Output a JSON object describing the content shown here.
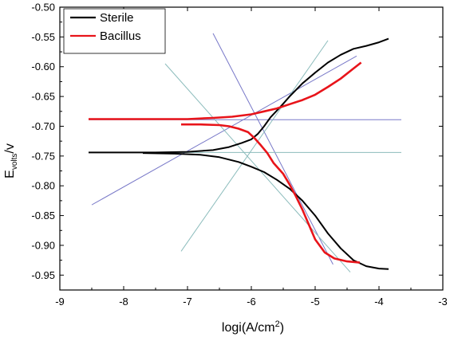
{
  "chart_data": {
    "type": "line",
    "title": "",
    "xlabel": "logi(A/cm",
    "xlabel_sup": "2",
    "xlabel_close": ")",
    "ylabel_main": "E",
    "ylabel_sub": "volts",
    "ylabel_unit": "/v",
    "xlim": [
      -9,
      -3
    ],
    "ylim": [
      -0.975,
      -0.5
    ],
    "x_ticks": [
      -9,
      -8,
      -7,
      -6,
      -5,
      -4,
      -3
    ],
    "x_tick_labels": [
      "-9",
      "-8",
      "-7",
      "-6",
      "-5",
      "-4",
      "-3"
    ],
    "y_ticks": [
      -0.95,
      -0.9,
      -0.85,
      -0.8,
      -0.75,
      -0.7,
      -0.65,
      -0.6,
      -0.55,
      -0.5
    ],
    "y_tick_labels": [
      "-0.95",
      "-0.90",
      "-0.85",
      "-0.80",
      "-0.75",
      "-0.70",
      "-0.65",
      "-0.60",
      "-0.55",
      "-0.50"
    ],
    "grid": false,
    "legend_position": "top-left",
    "series": [
      {
        "name": "Sterile",
        "color": "#000000",
        "anodic": [
          [
            -8.55,
            -0.744
          ],
          [
            -7.5,
            -0.744
          ],
          [
            -7.0,
            -0.743
          ],
          [
            -6.6,
            -0.74
          ],
          [
            -6.35,
            -0.735
          ],
          [
            -6.15,
            -0.728
          ],
          [
            -6.0,
            -0.722
          ],
          [
            -5.9,
            -0.713
          ],
          [
            -5.8,
            -0.7
          ],
          [
            -5.7,
            -0.685
          ],
          [
            -5.55,
            -0.668
          ],
          [
            -5.4,
            -0.65
          ],
          [
            -5.2,
            -0.628
          ],
          [
            -5.0,
            -0.61
          ],
          [
            -4.8,
            -0.593
          ],
          [
            -4.6,
            -0.58
          ],
          [
            -4.4,
            -0.57
          ],
          [
            -4.2,
            -0.565
          ],
          [
            -4.0,
            -0.559
          ],
          [
            -3.85,
            -0.553
          ]
        ],
        "cathodic": [
          [
            -7.7,
            -0.745
          ],
          [
            -7.2,
            -0.746
          ],
          [
            -6.8,
            -0.748
          ],
          [
            -6.5,
            -0.752
          ],
          [
            -6.2,
            -0.76
          ],
          [
            -6.0,
            -0.768
          ],
          [
            -5.8,
            -0.777
          ],
          [
            -5.6,
            -0.79
          ],
          [
            -5.4,
            -0.805
          ],
          [
            -5.2,
            -0.825
          ],
          [
            -5.0,
            -0.85
          ],
          [
            -4.8,
            -0.88
          ],
          [
            -4.6,
            -0.905
          ],
          [
            -4.4,
            -0.925
          ],
          [
            -4.2,
            -0.935
          ],
          [
            -4.0,
            -0.939
          ],
          [
            -3.85,
            -0.94
          ]
        ]
      },
      {
        "name": "Bacillus",
        "color": "#e8141a",
        "anodic": [
          [
            -8.55,
            -0.688
          ],
          [
            -7.5,
            -0.688
          ],
          [
            -7.0,
            -0.688
          ],
          [
            -6.6,
            -0.686
          ],
          [
            -6.3,
            -0.684
          ],
          [
            -6.0,
            -0.68
          ],
          [
            -5.8,
            -0.675
          ],
          [
            -5.6,
            -0.67
          ],
          [
            -5.4,
            -0.663
          ],
          [
            -5.2,
            -0.656
          ],
          [
            -5.0,
            -0.647
          ],
          [
            -4.8,
            -0.634
          ],
          [
            -4.6,
            -0.62
          ],
          [
            -4.4,
            -0.603
          ],
          [
            -4.28,
            -0.593
          ]
        ],
        "cathodic": [
          [
            -7.1,
            -0.697
          ],
          [
            -6.8,
            -0.697
          ],
          [
            -6.5,
            -0.698
          ],
          [
            -6.35,
            -0.7
          ],
          [
            -6.2,
            -0.704
          ],
          [
            -6.05,
            -0.71
          ],
          [
            -5.95,
            -0.72
          ],
          [
            -5.85,
            -0.732
          ],
          [
            -5.75,
            -0.745
          ],
          [
            -5.65,
            -0.762
          ],
          [
            -5.5,
            -0.78
          ],
          [
            -5.4,
            -0.798
          ],
          [
            -5.3,
            -0.818
          ],
          [
            -5.2,
            -0.84
          ],
          [
            -5.1,
            -0.865
          ],
          [
            -5.0,
            -0.89
          ],
          [
            -4.85,
            -0.912
          ],
          [
            -4.7,
            -0.922
          ],
          [
            -4.5,
            -0.927
          ],
          [
            -4.3,
            -0.929
          ]
        ]
      }
    ],
    "tafel_lines": [
      {
        "color": "#7878c8",
        "points": [
          [
            -6.6,
            -0.544
          ],
          [
            -4.72,
            -0.932
          ]
        ]
      },
      {
        "color": "#7878c8",
        "points": [
          [
            -8.5,
            -0.832
          ],
          [
            -4.35,
            -0.582
          ]
        ]
      },
      {
        "color": "#7878c8",
        "points": [
          [
            -8.55,
            -0.689
          ],
          [
            -3.65,
            -0.689
          ]
        ]
      },
      {
        "color": "#8cbcbc",
        "points": [
          [
            -7.1,
            -0.91
          ],
          [
            -4.8,
            -0.556
          ]
        ]
      },
      {
        "color": "#8cbcbc",
        "points": [
          [
            -7.35,
            -0.595
          ],
          [
            -4.45,
            -0.945
          ]
        ]
      },
      {
        "color": "#8cbcbc",
        "points": [
          [
            -8.55,
            -0.744
          ],
          [
            -3.65,
            -0.744
          ]
        ]
      }
    ]
  }
}
